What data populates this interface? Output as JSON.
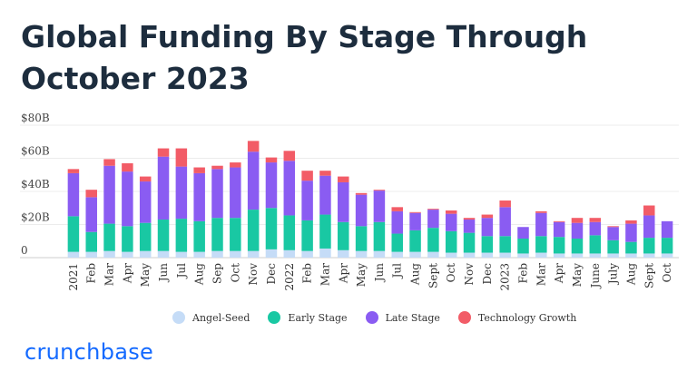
{
  "title": "Global Funding By Stage Through October 2023",
  "brand": "crunchbase",
  "colors": {
    "angel_seed": "#c5dcf7",
    "early_stage": "#19c8a3",
    "late_stage": "#8a5cf2",
    "technology_growth": "#f25c67",
    "title": "#1d2d3e",
    "brand": "#146aff"
  },
  "legend": [
    {
      "key": "angel_seed",
      "label": "Angel-Seed"
    },
    {
      "key": "early_stage",
      "label": "Early Stage"
    },
    {
      "key": "late_stage",
      "label": "Late Stage"
    },
    {
      "key": "technology_growth",
      "label": "Technology Growth"
    }
  ],
  "chart_data": {
    "type": "bar",
    "stacked": true,
    "title": "Global Funding By Stage Through October 2023",
    "xlabel": "",
    "ylabel": "",
    "ylim": [
      0,
      80
    ],
    "y_ticks": [
      {
        "value": 0,
        "label": "0"
      },
      {
        "value": 20,
        "label": "$20B"
      },
      {
        "value": 40,
        "label": "$40B"
      },
      {
        "value": 60,
        "label": "$60B"
      },
      {
        "value": 80,
        "label": "$80B"
      }
    ],
    "grid": true,
    "legend_position": "bottom",
    "categories": [
      "2021",
      "Feb",
      "Mar",
      "Apr",
      "May",
      "Jun",
      "Jul",
      "Aug",
      "Sep",
      "Oct",
      "Nov",
      "Dec",
      "2022",
      "Feb",
      "Mar",
      "Apr",
      "May",
      "Jun",
      "Jul",
      "Aug",
      "Sept",
      "Oct",
      "Nov",
      "Dec",
      "2023",
      "Feb",
      "Mar",
      "Apr",
      "May",
      "June",
      "July",
      "Aug",
      "Sept",
      "Oct"
    ],
    "series": [
      {
        "name": "Angel-Seed",
        "values": [
          3.5,
          3.5,
          4,
          3.5,
          4,
          4,
          3.5,
          3.5,
          4,
          4,
          4,
          5,
          4.5,
          4,
          5.5,
          4.5,
          4,
          4,
          3.5,
          3.5,
          3.5,
          3,
          3,
          3,
          3,
          2.5,
          3,
          2.5,
          2.5,
          2.5,
          2.5,
          2.5,
          2.5,
          2.5
        ]
      },
      {
        "name": "Early Stage",
        "values": [
          21.5,
          12,
          16.5,
          15.5,
          17,
          19,
          20,
          18.5,
          20,
          20,
          25,
          25,
          21,
          18.5,
          20.5,
          17,
          15,
          17.5,
          11,
          13,
          14.5,
          13,
          12,
          10,
          10,
          9,
          10,
          10,
          9,
          11,
          8,
          7,
          9.5,
          9.5
        ]
      },
      {
        "name": "Late Stage",
        "values": [
          26,
          21,
          35,
          33,
          25,
          38,
          31.5,
          29,
          29.5,
          30.5,
          35,
          27.5,
          33,
          24,
          23.5,
          24,
          19,
          19,
          13.5,
          10.5,
          11,
          10.5,
          8,
          11,
          17.5,
          7,
          14,
          9,
          9.5,
          8,
          8,
          11,
          13.5,
          10
        ]
      },
      {
        "name": "Technology Growth",
        "values": [
          2.5,
          4.5,
          4,
          5,
          3,
          5,
          11,
          3.5,
          2,
          3,
          6.5,
          3,
          6,
          6,
          3,
          3.5,
          1,
          0.5,
          2.5,
          0.5,
          0.5,
          2,
          1,
          2,
          4,
          0,
          1,
          0.5,
          3,
          2.5,
          0.5,
          2,
          6,
          0
        ]
      }
    ]
  }
}
